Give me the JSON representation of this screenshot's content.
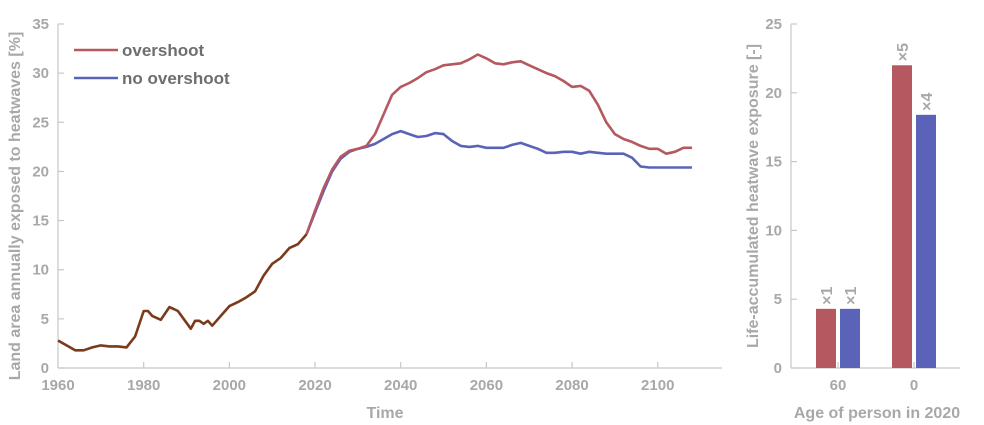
{
  "chart_data": [
    {
      "type": "line",
      "xlabel": "Time",
      "ylabel": "Land area annually exposed to heatwaves [%]",
      "xlim": [
        1960,
        2115
      ],
      "ylim": [
        0,
        35
      ],
      "xticks": [
        1960,
        1980,
        2000,
        2020,
        2040,
        2060,
        2080,
        2100
      ],
      "yticks": [
        0,
        5,
        10,
        15,
        20,
        25,
        30,
        35
      ],
      "legend_position": "top-left",
      "colors": {
        "overshoot": "#b5585f",
        "no_overshoot": "#5b63b8",
        "historical": "#7a3a1c"
      },
      "historical": {
        "x": [
          1960,
          1962,
          1964,
          1966,
          1968,
          1970,
          1972,
          1974,
          1976,
          1978,
          1980,
          1981,
          1982,
          1984,
          1986,
          1987,
          1988,
          1990,
          1991,
          1992,
          1993,
          1994,
          1995,
          1996,
          1997,
          1998,
          2000,
          2002,
          2004,
          2006,
          2008,
          2010,
          2012,
          2014,
          2016,
          2018
        ],
        "y": [
          2.8,
          2.3,
          1.8,
          1.8,
          2.1,
          2.3,
          2.2,
          2.2,
          2.1,
          3.2,
          5.8,
          5.8,
          5.3,
          4.9,
          6.2,
          6.0,
          5.8,
          4.6,
          4.0,
          4.8,
          4.8,
          4.5,
          4.8,
          4.3,
          4.8,
          5.3,
          6.3,
          6.7,
          7.2,
          7.8,
          9.4,
          10.6,
          11.2,
          12.2,
          12.6,
          13.6
        ]
      },
      "series": [
        {
          "name": "overshoot",
          "x": [
            2018,
            2020,
            2022,
            2024,
            2026,
            2028,
            2030,
            2032,
            2034,
            2036,
            2038,
            2040,
            2042,
            2044,
            2046,
            2048,
            2050,
            2052,
            2054,
            2056,
            2058,
            2060,
            2062,
            2064,
            2066,
            2068,
            2070,
            2072,
            2074,
            2076,
            2078,
            2080,
            2082,
            2084,
            2086,
            2088,
            2090,
            2092,
            2094,
            2096,
            2098,
            2100,
            2102,
            2104,
            2106,
            2108
          ],
          "y": [
            13.6,
            16.0,
            18.3,
            20.2,
            21.5,
            22.1,
            22.3,
            22.6,
            23.8,
            25.8,
            27.8,
            28.6,
            29.0,
            29.5,
            30.1,
            30.4,
            30.8,
            30.9,
            31.0,
            31.4,
            31.9,
            31.5,
            31.0,
            30.9,
            31.1,
            31.2,
            30.8,
            30.4,
            30.0,
            29.7,
            29.2,
            28.6,
            28.7,
            28.2,
            26.8,
            25.0,
            23.8,
            23.3,
            23.0,
            22.6,
            22.3,
            22.3,
            21.8,
            22.0,
            22.4,
            22.4
          ]
        },
        {
          "name": "no overshoot",
          "x": [
            2018,
            2020,
            2022,
            2024,
            2026,
            2028,
            2030,
            2032,
            2034,
            2036,
            2038,
            2040,
            2042,
            2044,
            2046,
            2048,
            2050,
            2052,
            2054,
            2056,
            2058,
            2060,
            2062,
            2064,
            2066,
            2068,
            2070,
            2072,
            2074,
            2076,
            2078,
            2080,
            2082,
            2084,
            2086,
            2088,
            2090,
            2092,
            2094,
            2096,
            2098,
            2100,
            2102,
            2104,
            2106,
            2108
          ],
          "y": [
            13.6,
            15.8,
            18.0,
            20.0,
            21.3,
            22.0,
            22.3,
            22.5,
            22.8,
            23.3,
            23.8,
            24.1,
            23.8,
            23.5,
            23.6,
            23.9,
            23.8,
            23.1,
            22.6,
            22.5,
            22.6,
            22.4,
            22.4,
            22.4,
            22.7,
            22.9,
            22.6,
            22.3,
            21.9,
            21.9,
            22.0,
            22.0,
            21.8,
            22.0,
            21.9,
            21.8,
            21.8,
            21.8,
            21.4,
            20.5,
            20.4,
            20.4,
            20.4,
            20.4,
            20.4,
            20.4
          ]
        }
      ]
    },
    {
      "type": "bar",
      "xlabel": "Age of person in 2020",
      "ylabel": "Life-accumulated heatwave exposure [-]",
      "categories": [
        "60",
        "0"
      ],
      "ylim": [
        0,
        25
      ],
      "yticks": [
        0,
        5,
        10,
        15,
        20,
        25
      ],
      "series": [
        {
          "name": "overshoot",
          "color": "#b5585f",
          "values": [
            4.3,
            22.0
          ],
          "labels": [
            "×1",
            "×5"
          ]
        },
        {
          "name": "no overshoot",
          "color": "#5b63b8",
          "values": [
            4.3,
            18.4
          ],
          "labels": [
            "×1",
            "×4"
          ]
        }
      ]
    }
  ]
}
